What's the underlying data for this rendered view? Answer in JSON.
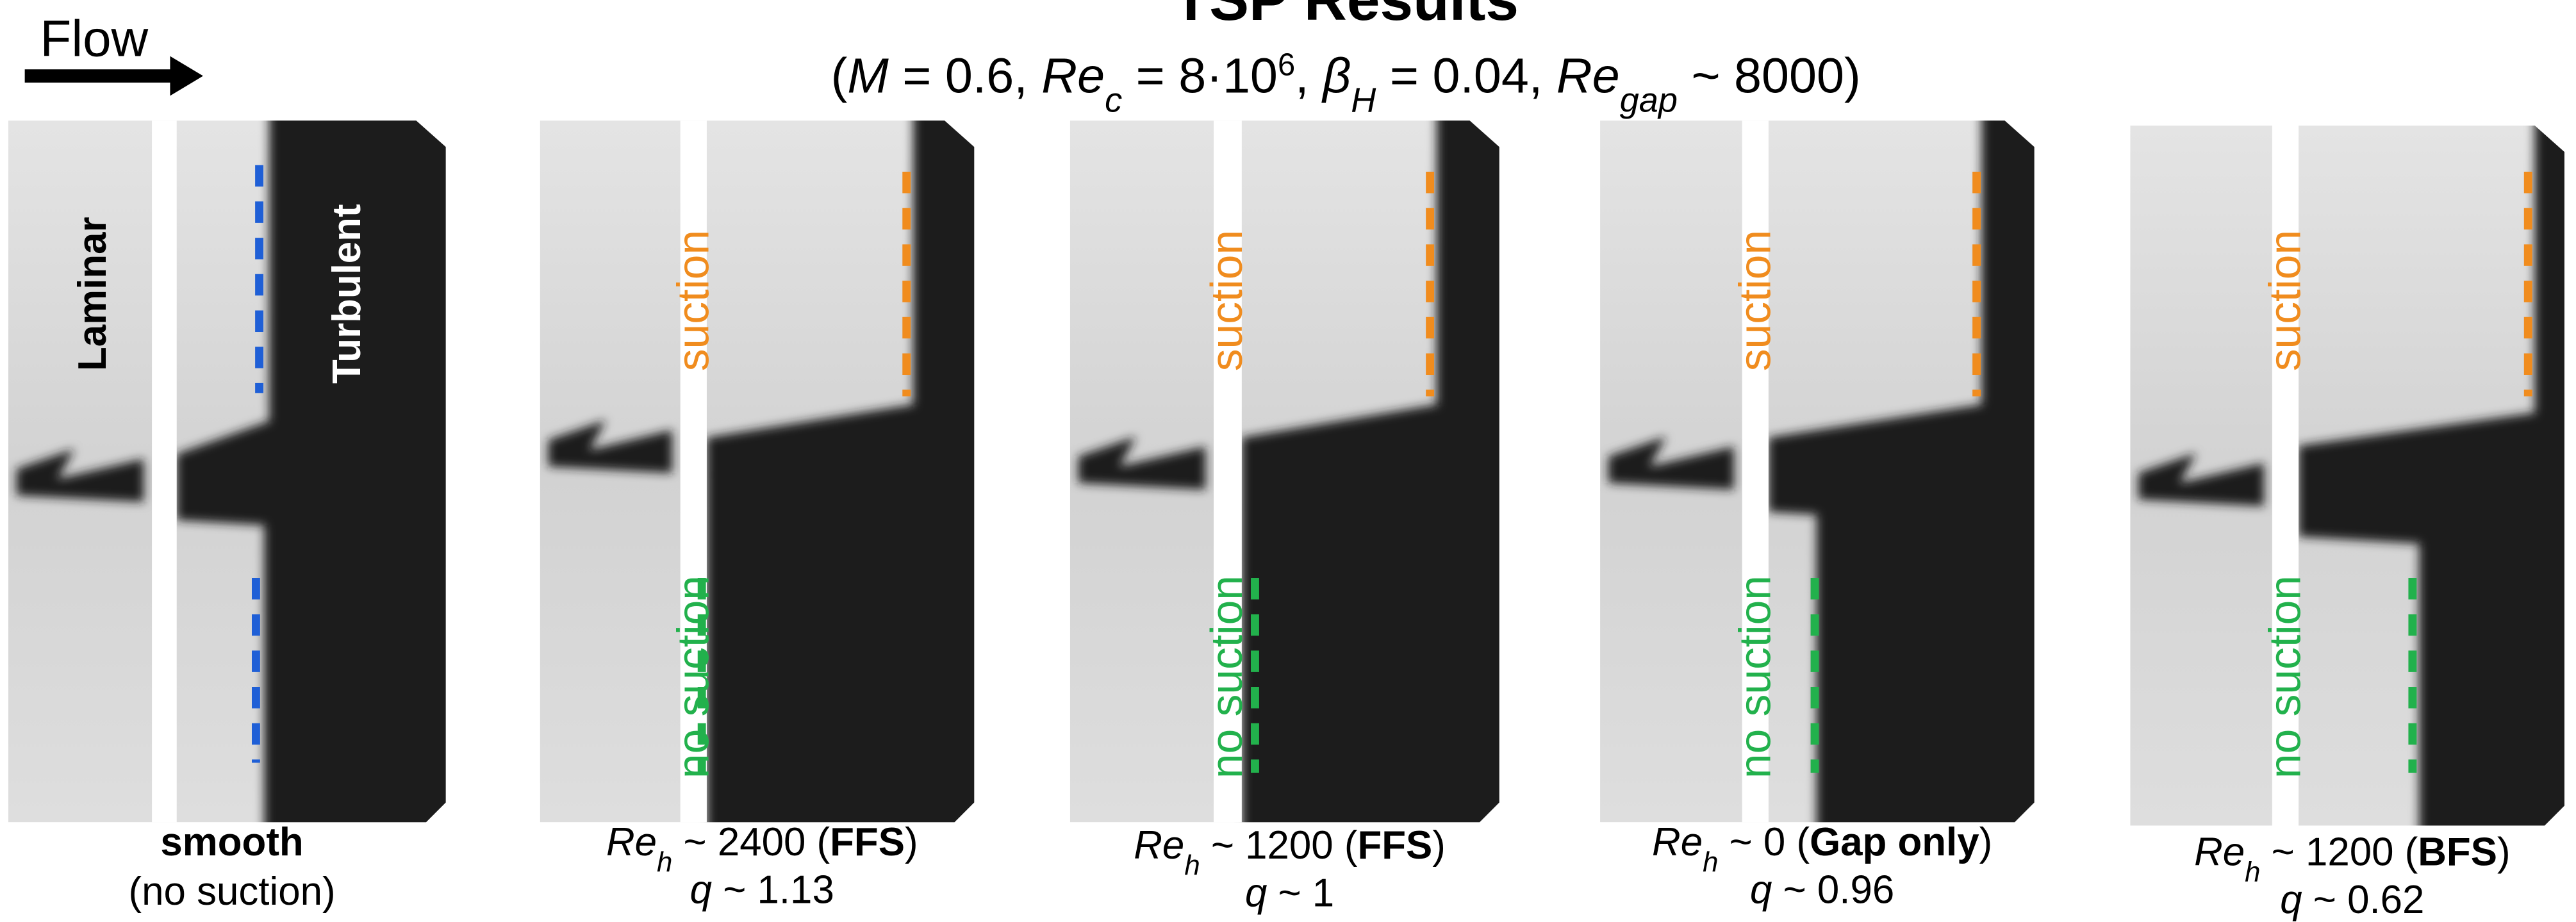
{
  "title": "TSP Results",
  "subtitle": [
    "(",
    "M",
    " = 0.6, ",
    "Re",
    "c",
    " = 8·10",
    "6",
    ", ",
    "β",
    "H",
    " = 0.04, ",
    "Re",
    "gap",
    " ~ 8000)"
  ],
  "flow_label": "Flow",
  "panels": [
    {
      "labels": [
        "Laminar",
        "Turbulent"
      ],
      "caption": [
        [
          "smooth"
        ],
        [
          "(no suction)"
        ]
      ]
    },
    {
      "labels": [
        "suction",
        "no suction"
      ],
      "caption": [
        [
          "Re",
          "h",
          " ~ 2400 (",
          "FFS",
          ")"
        ],
        [
          "q",
          " ~ 1.13"
        ]
      ]
    },
    {
      "labels": [
        "suction",
        "no suction"
      ],
      "caption": [
        [
          "Re",
          "h",
          " ~ 1200 (",
          "FFS",
          ")"
        ],
        [
          "q",
          " ~ 1"
        ]
      ]
    },
    {
      "labels": [
        "suction",
        "no suction"
      ],
      "caption": [
        [
          "Re",
          "h",
          " ~ 0 (",
          "Gap only",
          ")"
        ],
        [
          "q",
          " ~ 0.96"
        ]
      ]
    },
    {
      "labels": [
        "suction",
        "no suction"
      ],
      "caption": [
        [
          "Re",
          "h",
          " ~ 1200 (",
          "BFS",
          ")"
        ],
        [
          "q",
          " ~ 0.62"
        ]
      ]
    }
  ]
}
